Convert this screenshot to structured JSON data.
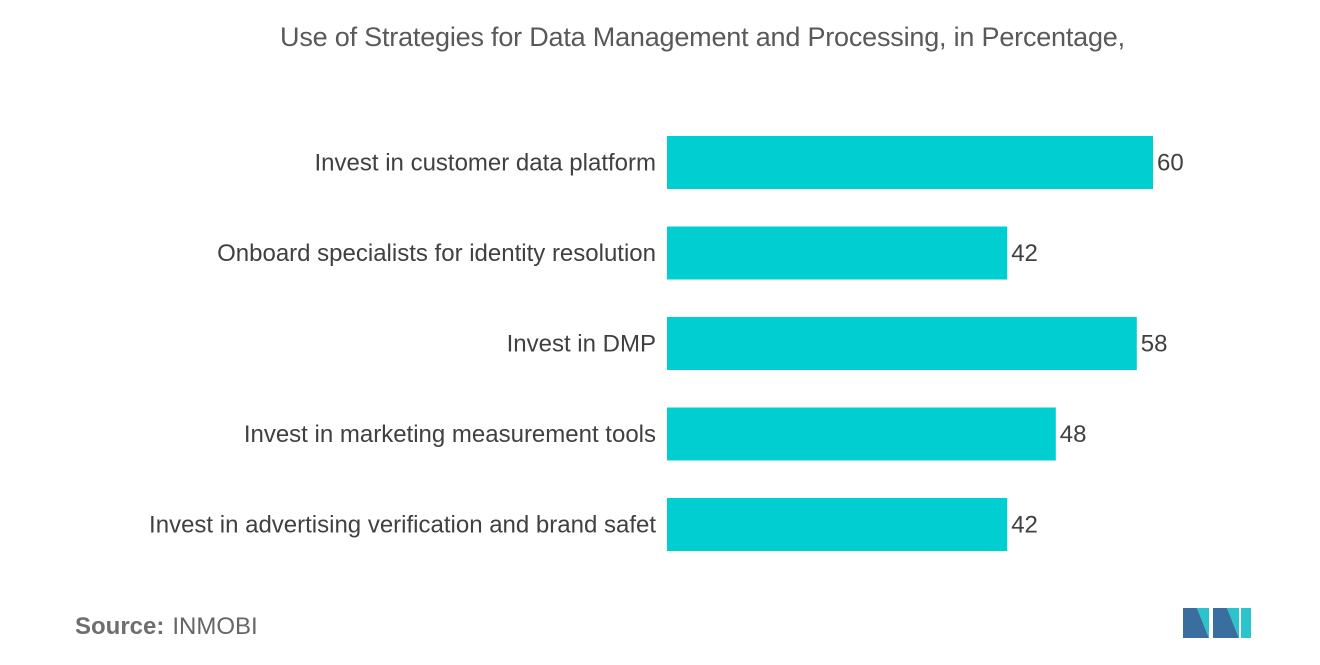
{
  "title": "Use of Strategies for Data Management and Processing, in Percentage,",
  "source": {
    "label": "Source:",
    "value": "INMOBI"
  },
  "colors": {
    "bar": "#00CED1",
    "text": "#404040",
    "logo_dark": "#3a6e9e",
    "logo_light": "#2bc4cc"
  },
  "logo_icon": "mordor-intelligence-logo",
  "chart_data": {
    "type": "bar",
    "orientation": "horizontal",
    "title": "Use of Strategies for Data Management and Processing, in Percentage,",
    "categories": [
      "Invest in customer data platform",
      "Onboard specialists for identity resolution",
      "Invest in DMP",
      "Invest in marketing measurement tools",
      "Invest in advertising verification and brand safet"
    ],
    "values": [
      60,
      42,
      58,
      48,
      42
    ],
    "xlim": [
      0,
      60
    ],
    "xlabel": "",
    "ylabel": "",
    "grid": false,
    "legend": "none",
    "data_labels": true
  }
}
